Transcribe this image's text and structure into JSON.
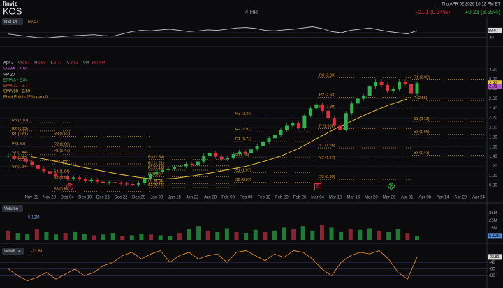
{
  "header": {
    "logo": "finviz",
    "ticker": "KOS",
    "timeframe": "4 HR",
    "datetime": "Thu APR 02 2026 10:12 PM ET",
    "change": "-0.01 (0.34%)",
    "change_after": "+0.23 (8.55%)"
  },
  "rsi": {
    "label": "RSI 14",
    "current": 59.07,
    "ylim": [
      0,
      100
    ],
    "yticks": [
      50,
      30
    ],
    "values": [
      45,
      40,
      35,
      30,
      28,
      32,
      35,
      38,
      40,
      42,
      38,
      36,
      45,
      55,
      60,
      58,
      62,
      65,
      60,
      55,
      58,
      62,
      60,
      65,
      70,
      72,
      68,
      60,
      58,
      62,
      65,
      70,
      75,
      68,
      55,
      50,
      60,
      65,
      70,
      62,
      55,
      50,
      45,
      59.07
    ]
  },
  "price": {
    "ohlc": {
      "date": "Apr 2",
      "items": [
        {
          "key": "O",
          "value": "2.93"
        },
        {
          "key": "H",
          "value": "2.99"
        },
        {
          "key": "L",
          "value": "2.77"
        },
        {
          "key": "C",
          "value": "2.92"
        },
        {
          "key": "Vol",
          "value": "35.09M"
        }
      ]
    },
    "legend": [
      {
        "label": "VWAP - 2.90",
        "color": "#c45ad6"
      },
      {
        "label": "VP 20",
        "color": "#dddddd"
      },
      {
        "label": "EMA 8 - 2.84",
        "color": "#3cc35a"
      },
      {
        "label": "EMA 21 - 2.77",
        "color": "#e0503a"
      },
      {
        "label": "SMA 50 - 2.59",
        "color": "#e8c040"
      },
      {
        "label": "Pivot Points (Fibonacci)",
        "color": "#e8a030"
      }
    ],
    "ylim": [
      0.6,
      3.4
    ],
    "yticks": [
      {
        "value": 3.2,
        "label": "3.20"
      },
      {
        "value": 3,
        "label": "3.00"
      },
      {
        "value": 2.8,
        "label": "2.80"
      },
      {
        "value": 2.6,
        "label": "2.60"
      },
      {
        "value": 2.4,
        "label": "2.40"
      },
      {
        "value": 2.2,
        "label": "2.20"
      },
      {
        "value": 2,
        "label": "2.00"
      },
      {
        "value": 1.8,
        "label": "1.80"
      },
      {
        "value": 1.6,
        "label": "1.60"
      },
      {
        "value": 1.4,
        "label": "1.40"
      },
      {
        "value": 1.2,
        "label": "1.20"
      },
      {
        "value": 1,
        "label": "1.00"
      },
      {
        "value": 0.8,
        "label": "0.80"
      }
    ],
    "price_tags": [
      {
        "value": 2.92,
        "label": "2.92",
        "color": "#e8c040"
      },
      {
        "value": 2.91,
        "label": "2.91",
        "color": "#b455c8"
      }
    ],
    "closes": [
      1.42,
      1.38,
      1.35,
      1.3,
      1.22,
      1.15,
      1.1,
      1.05,
      1.0,
      0.98,
      0.95,
      0.97,
      0.93,
      0.9,
      0.92,
      0.88,
      0.86,
      0.87,
      0.85,
      0.84,
      0.83,
      0.82,
      0.85,
      0.95,
      1.05,
      1.08,
      1.12,
      1.15,
      1.18,
      1.2,
      1.25,
      1.22,
      1.3,
      1.42,
      1.48,
      1.4,
      1.35,
      1.38,
      1.45,
      1.5,
      1.48,
      1.55,
      1.62,
      1.7,
      1.78,
      1.85,
      1.95,
      2.05,
      2.1,
      2.0,
      2.25,
      2.4,
      2.48,
      2.35,
      2.2,
      2.05,
      1.95,
      2.3,
      2.5,
      2.6,
      2.65,
      2.85,
      2.95,
      2.88,
      2.75,
      2.8,
      2.95,
      2.9,
      2.7,
      2.92
    ],
    "sma50": [
      1.4,
      1.33,
      1.25,
      1.17,
      1.1,
      1.03,
      0.97,
      0.93,
      0.95,
      1.0,
      1.06,
      1.13,
      1.2,
      1.3,
      1.42,
      1.58,
      1.78,
      1.98,
      2.15,
      2.32,
      2.47,
      2.59
    ],
    "dates": [
      "Nov 21",
      "Nov 28",
      "Dec 04",
      "Dec 10",
      "Dec 16",
      "Dec 22",
      "Dec 29",
      "Jan 09",
      "Jan 15",
      "Jan 22",
      "Jan 28",
      "Feb 03",
      "Feb 09",
      "Feb 13",
      "Feb 20",
      "Feb 26",
      "Mar 04",
      "Mar 10",
      "Mar 16",
      "Mar 20",
      "Mar 26",
      "Apr 01",
      "Apr 08",
      "Apr 14",
      "Apr 20",
      "Apr 24"
    ],
    "markers": [
      {
        "label": "R",
        "color": "#e0303f"
      },
      {
        "label": "E",
        "color": "#e0303f"
      },
      {
        "label": "R",
        "color": "#2fb24c"
      }
    ],
    "pivots": [
      [
        {
          "label": "R3 (2.10)",
          "value": 2.1
        },
        {
          "label": "R2 (1.93)",
          "value": 1.93
        },
        {
          "label": "R1 (1.81)",
          "value": 1.81
        },
        {
          "label": "P (1.62)",
          "value": 1.62
        },
        {
          "label": "S1 (1.44)",
          "value": 1.44
        },
        {
          "label": "S2 (1.32)",
          "value": 1.32
        },
        {
          "label": "S3 (1.14)",
          "value": 1.14
        }
      ],
      [
        {
          "label": "R3 (1.82)",
          "value": 1.82
        },
        {
          "label": "R2 (1.60)",
          "value": 1.6
        },
        {
          "label": "R1 (1.47)",
          "value": 1.47
        },
        {
          "label": "P (1.25)",
          "value": 1.25
        },
        {
          "label": "S1 (1.04)",
          "value": 1.04
        },
        {
          "label": "S2 (0.90)",
          "value": 0.9
        },
        {
          "label": "S3 (0.68)",
          "value": 0.68
        }
      ],
      [
        {
          "label": "R3 (1.34)",
          "value": 1.34
        },
        {
          "label": "R2 (1.21)",
          "value": 1.21
        },
        {
          "label": "R1 (1.12)",
          "value": 1.12
        },
        {
          "label": "P (0.98)",
          "value": 0.98
        },
        {
          "label": "S1 (0.84)",
          "value": 0.84
        },
        {
          "label": "S2 (0.76)",
          "value": 0.76
        }
      ],
      [
        {
          "label": "R3 (2.24)",
          "value": 2.24
        },
        {
          "label": "R2 (1.91)",
          "value": 1.91
        },
        {
          "label": "R1 (1.71)",
          "value": 1.71
        },
        {
          "label": "P (1.38)",
          "value": 1.38
        },
        {
          "label": "S1 (1.07)",
          "value": 1.07
        },
        {
          "label": "S2 (0.87)",
          "value": 0.87
        }
      ],
      [
        {
          "label": "R3 (3.03)",
          "value": 3.03
        },
        {
          "label": "R2 (2.63)",
          "value": 2.63
        },
        {
          "label": "R1 (2.38)",
          "value": 2.38
        },
        {
          "label": "P (1.98)",
          "value": 1.98
        },
        {
          "label": "S1 (1.58)",
          "value": 1.58
        },
        {
          "label": "S2 (1.33)",
          "value": 1.33
        },
        {
          "label": "S3 (0.93)",
          "value": 0.93
        }
      ],
      [
        {
          "label": "R1 (2.99)",
          "value": 2.99
        },
        {
          "label": "P (2.56)",
          "value": 2.56
        },
        {
          "label": "S1 (2.13)",
          "value": 2.13
        },
        {
          "label": "S2 (1.86)",
          "value": 1.86
        },
        {
          "label": "S3 (1.43)",
          "value": 1.43
        }
      ]
    ]
  },
  "volume": {
    "label": "Volume",
    "current": {
      "value": 5.12,
      "label": "5.12M"
    },
    "ylim": [
      0,
      40
    ],
    "yticks": [
      {
        "value": 35,
        "label": "35M"
      },
      {
        "value": 25,
        "label": "25M"
      },
      {
        "value": 15,
        "label": "15M"
      }
    ],
    "values": [
      12,
      9,
      8,
      14,
      10,
      7,
      9,
      11,
      8,
      6,
      7,
      9,
      5,
      6,
      8,
      7,
      6,
      5,
      9,
      14,
      18,
      12,
      10,
      15,
      11,
      9,
      13,
      10,
      12,
      16,
      14,
      18,
      12,
      20,
      16,
      11,
      14,
      13,
      15,
      12,
      10,
      14,
      9,
      5.12
    ]
  },
  "wr": {
    "label": "W%R 14",
    "current": -23.81,
    "ylim": [
      -100,
      0
    ],
    "yticks": [
      -40,
      -60,
      -80
    ],
    "values": [
      -60,
      -80,
      -95,
      -85,
      -70,
      -90,
      -75,
      -60,
      -80,
      -70,
      -50,
      -40,
      -20,
      -10,
      -30,
      -15,
      -5,
      -40,
      -20,
      -10,
      -30,
      -20,
      -15,
      -40,
      -10,
      -5,
      -20,
      -35,
      -15,
      -25,
      -5,
      -10,
      -30,
      -60,
      -80,
      -40,
      -20,
      -10,
      -15,
      -5,
      -30,
      -70,
      -90,
      -23.81
    ]
  }
}
